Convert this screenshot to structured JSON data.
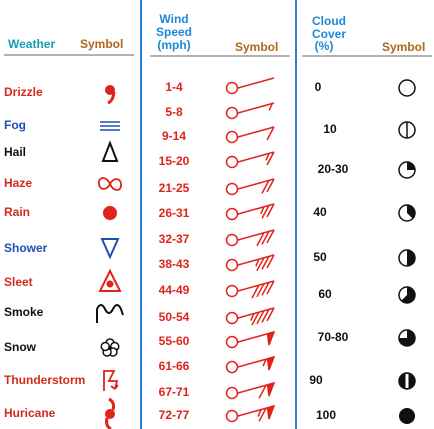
{
  "weather": {
    "header": {
      "name": "Weather",
      "symbol": "Symbol"
    },
    "rows": [
      {
        "label": "Drizzle",
        "color": "#d42a1e"
      },
      {
        "label": "Fog",
        "color": "#1f4fb4"
      },
      {
        "label": "Hail",
        "color": "#111111"
      },
      {
        "label": "Haze",
        "color": "#d42a1e"
      },
      {
        "label": "Rain",
        "color": "#d42a1e"
      },
      {
        "label": "Shower",
        "color": "#1f4fb4"
      },
      {
        "label": "Sleet",
        "color": "#d42a1e"
      },
      {
        "label": "Smoke",
        "color": "#111111"
      },
      {
        "label": "Snow",
        "color": "#111111"
      },
      {
        "label": "Thunderstorm",
        "color": "#d42a1e"
      },
      {
        "label": "Huricane",
        "color": "#d42a1e"
      }
    ]
  },
  "wind": {
    "header": {
      "name": [
        "Wind",
        "Speed",
        "(mph)"
      ],
      "symbol": "Symbol"
    },
    "rows": [
      "1-4",
      "5-8",
      "9-14",
      "15-20",
      "21-25",
      "26-31",
      "32-37",
      "38-43",
      "44-49",
      "50-54",
      "55-60",
      "61-66",
      "67-71",
      "72-77"
    ]
  },
  "cloud": {
    "header": {
      "name": [
        "Cloud",
        "Cover",
        "(%)"
      ],
      "symbol": "Symbol"
    },
    "rows": [
      "0",
      "10",
      "20-30",
      "40",
      "50",
      "60",
      "70-80",
      "90",
      "100"
    ]
  }
}
